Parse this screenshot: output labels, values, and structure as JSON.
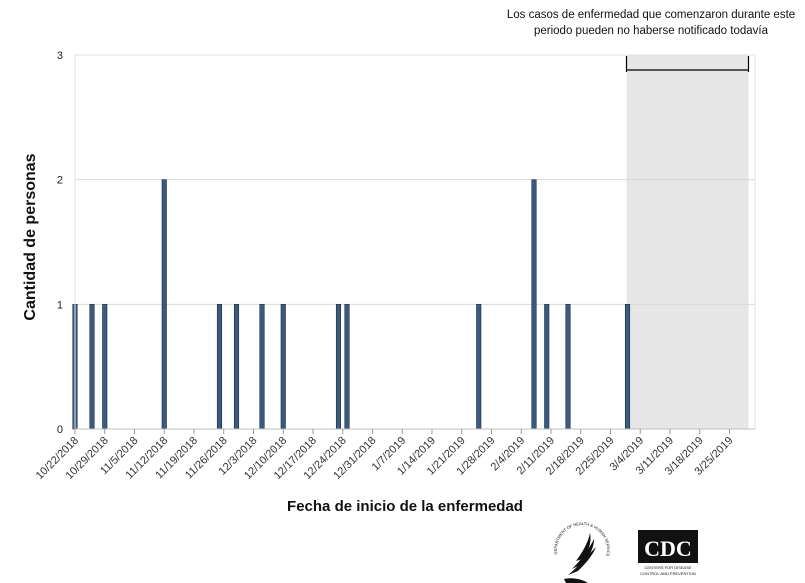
{
  "chart_data": {
    "type": "bar",
    "xlabel": "Fecha de inicio de la enfermedad",
    "ylabel": "Cantidad de personas",
    "ylim": [
      0,
      3
    ],
    "yticks": [
      0,
      1,
      2,
      3
    ],
    "grid": "horizontal",
    "x_ticks": [
      "10/22/2018",
      "10/29/2018",
      "11/5/2018",
      "11/12/2018",
      "11/19/2018",
      "11/26/2018",
      "12/3/2018",
      "12/10/2018",
      "12/17/2018",
      "12/24/2018",
      "12/31/2018",
      "1/7/2019",
      "1/14/2019",
      "1/21/2019",
      "1/28/2019",
      "2/4/2019",
      "2/11/2019",
      "2/18/2019",
      "2/25/2019",
      "3/4/2019",
      "3/11/2019",
      "3/18/2019",
      "3/25/2019"
    ],
    "x_range": [
      "2018-10-22",
      "2019-03-31"
    ],
    "bars": [
      {
        "date": "2018-10-22",
        "value": 1
      },
      {
        "date": "2018-10-26",
        "value": 1
      },
      {
        "date": "2018-10-29",
        "value": 1
      },
      {
        "date": "2018-11-12",
        "value": 2
      },
      {
        "date": "2018-11-25",
        "value": 1
      },
      {
        "date": "2018-11-29",
        "value": 1
      },
      {
        "date": "2018-12-05",
        "value": 1
      },
      {
        "date": "2018-12-10",
        "value": 1
      },
      {
        "date": "2018-12-23",
        "value": 1
      },
      {
        "date": "2018-12-25",
        "value": 1
      },
      {
        "date": "2019-01-25",
        "value": 1
      },
      {
        "date": "2019-02-07",
        "value": 2
      },
      {
        "date": "2019-02-10",
        "value": 1
      },
      {
        "date": "2019-02-15",
        "value": 1
      },
      {
        "date": "2019-03-01",
        "value": 1
      }
    ],
    "reporting_lag_window": {
      "start": "2019-03-01",
      "end": "2019-03-29",
      "annotation": [
        "Los casos de enfermedad que comenzaron durante este",
        "periodo pueden no haberse notificado todavía"
      ]
    },
    "colors": {
      "bar": "#3b5a7d",
      "shade": "#e6e6e6",
      "grid": "#d9d9d9"
    }
  },
  "logos": {
    "hhs": "DEPARTMENT OF HEALTH & HUMAN SERVICES USA",
    "cdc": "CDC",
    "cdc_line1": "CENTERS FOR DISEASE",
    "cdc_line2": "CONTROL AND PREVENTION"
  }
}
